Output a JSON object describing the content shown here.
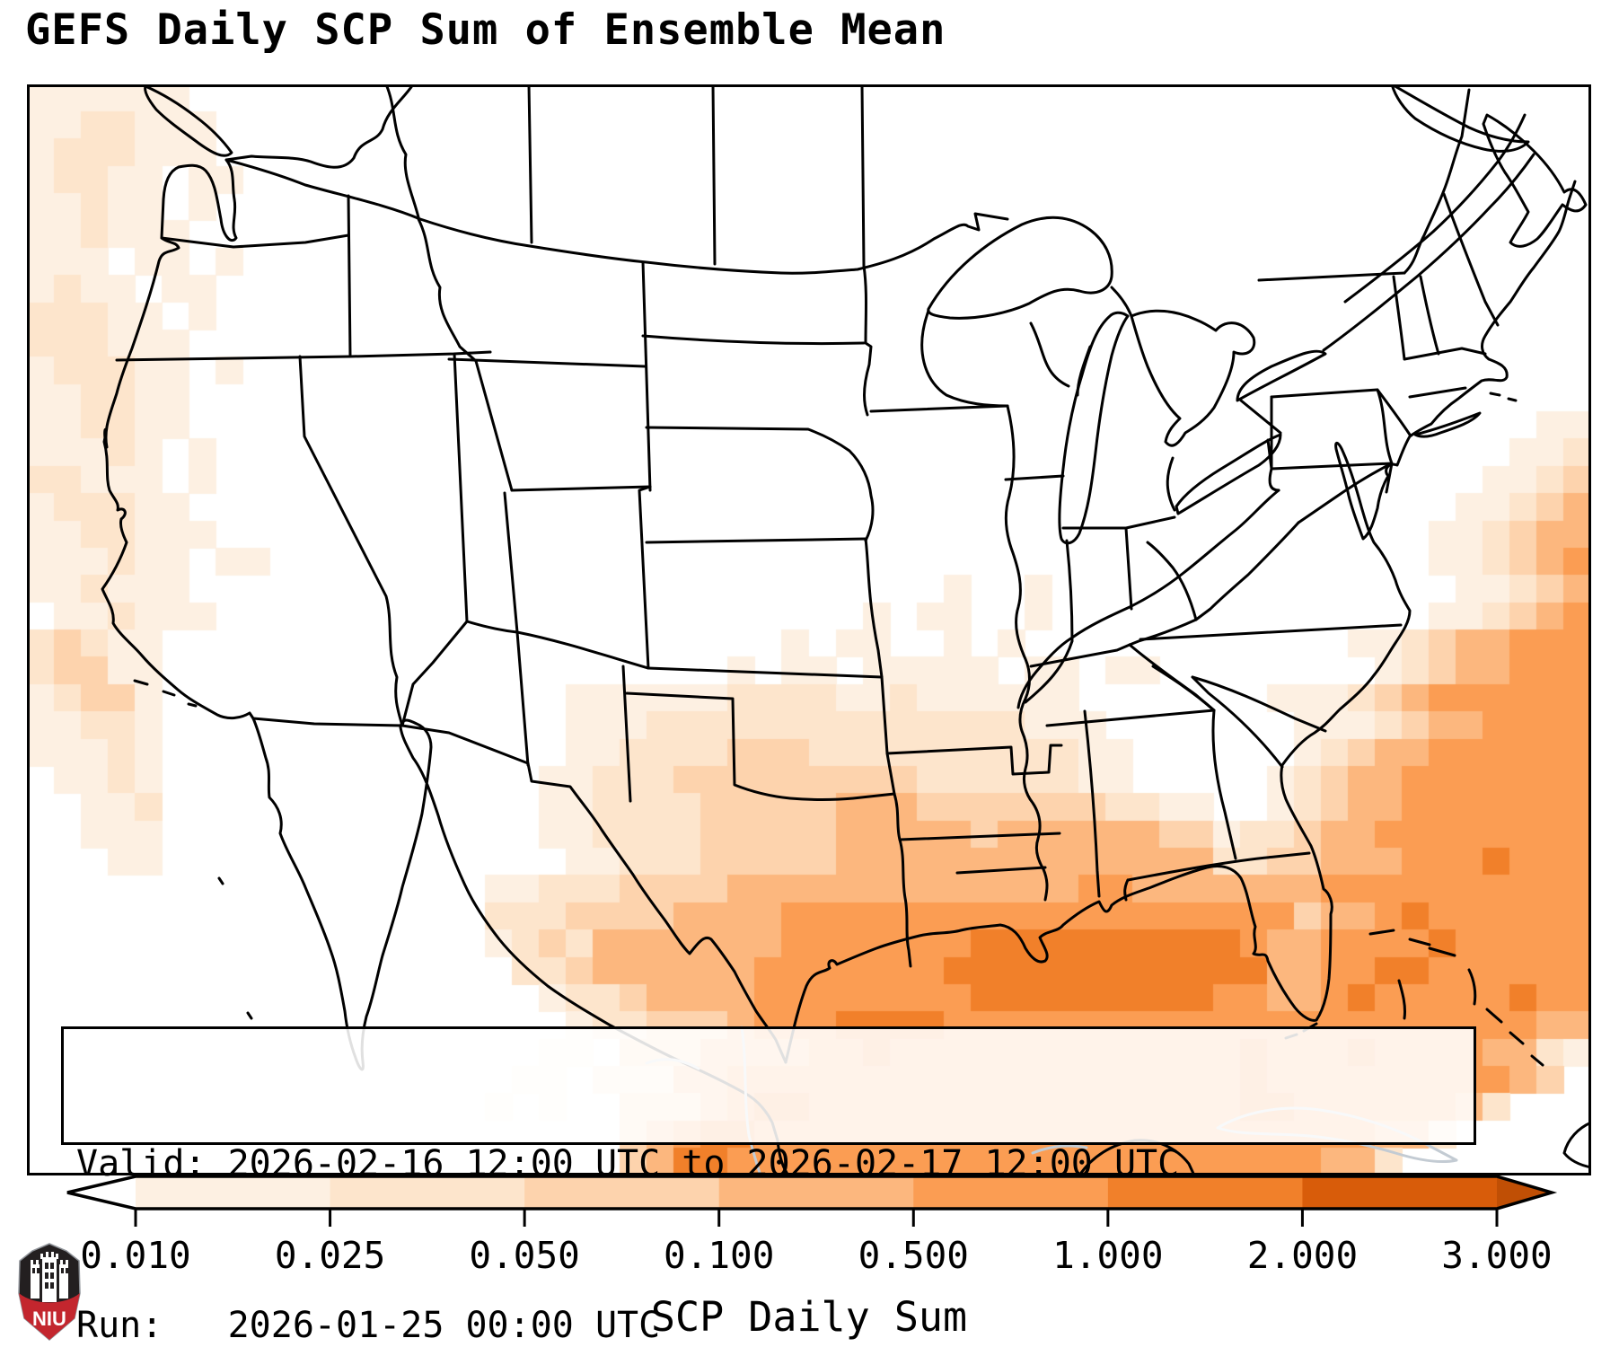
{
  "title": "GEFS Daily SCP Sum of Ensemble Mean",
  "annotation": {
    "valid_line": "Valid: 2026-02-16 12:00 UTC to 2026-02-17 12:00 UTC",
    "run_line": "Run:   2026-01-25 00:00 UTC"
  },
  "colorbar": {
    "label": "SCP Daily Sum",
    "tick_labels": [
      "0.010",
      "0.025",
      "0.050",
      "0.100",
      "0.500",
      "1.000",
      "2.000",
      "3.000"
    ],
    "tick_values": [
      0.01,
      0.025,
      0.05,
      0.1,
      0.5,
      1.0,
      2.0,
      3.0
    ],
    "segment_colors": [
      "#fdf0e2",
      "#fde5cc",
      "#fdd3ad",
      "#fcb77e",
      "#fb9d53",
      "#f1802a",
      "#d85c0a"
    ],
    "under_color": "#ffffff",
    "over_color": "#c04f05",
    "border_color": "#000000"
  },
  "map": {
    "frame_color": "#000000",
    "us_outline_color": "#000000",
    "foreign_water_outline_color": "#c3cbd3",
    "palette": [
      "#ffffff",
      "#fdf0e2",
      "#fde5cc",
      "#fdd3ad",
      "#fcb77e",
      "#fb9d53",
      "#f1802a",
      "#d85c0a",
      "#c04f05"
    ],
    "grid": {
      "cols": 58,
      "rows": 40,
      "cells": [
        "1111110000000000000000000000000000000000000000000000000000",
        "1122111000000000000000000000000000000000000000000000000000",
        "1222111000000000000000000000000000000000000000000000000000",
        "1221101100000000000000000000000000000000000000000000000000",
        "1121101000000000000000000000000000000000000000000000000000",
        "1121110000000000000000000000000000000000000000000000000000",
        "1110110100000000000000000000000000000000000000000000000000",
        "1211011000000000000000000000000000000000000000000000000000",
        "2221101000000000000000000000000000000000000000000000000000",
        "2221110000000000000000000000000000000000000000000000000000",
        "1222110100000000000000000000000000000000000000000000000000",
        "1122110000000000000000000000000000000000000000000000000000",
        "1122110000000000000000000000000000000000000000000000000011",
        "1112101000000000000000000000000000000000000000000000000112",
        "2211101000000000000000000000000000000000000000000000001123",
        "1222110000000000000000000000000000000000000000000000011234",
        "1122111000000000000000000000000000000000000000000000112344",
        "1112110110000000000000000000000000000000000000000000112345",
        "1121110000000000000000000000000000100100000000000000011234",
        "0112111000000000000000000000000101100100000000000000112345",
        "2321100000000000000000000000101100101000000000000112344555",
        "2331100000000000000000000010110111110110110000000012344555",
        "1233100000000000000011111122221121111110000000111234555555",
        "1122100000000000000011122222222222222111000000011123445555",
        "1112100000000000000011222233322222222221100000012344555555",
        "0112100000000000000112223333333332222221100000123445555555",
        "0011200000000000000112222333334443333333221100123445555555",
        "0011100000000000000112222333334444434444443312234455555555",
        "0001100000000000000011222333334444444444444422334445556555",
        "0000000000000000011222333344444444444445544444445555555555",
        "0000000000000000022233334444555555555555555555534456555555",
        "0000000000000000012324444444555555566666666665445555655555",
        "0000000000000000002234444445555555666666666666445566555555",
        "0000000000000000000122344445555555566666666655445655555655",
        "0000000000000000000012233345556666555555555555555555555544",
        "0000000000000000000110333444455655555555555556555655554421",
        "0000000000000000001102224455555555555555555556555555555430",
        "0000000000000000010100333456655555555555555556655555542000",
        "0000000000000000000000345665555555555555555555555544200000",
        "0000000000000000000000346655555555555555555555554420000000"
      ]
    }
  },
  "logo": {
    "label": "NIU",
    "shield_color": "#231f20",
    "band_color": "#c3262e",
    "castle_color": "#ffffff"
  },
  "chart_data": {
    "type": "heatmap",
    "title": "GEFS Daily SCP Sum of Ensemble Mean",
    "colorbar_label": "SCP Daily Sum",
    "levels": [
      0.01,
      0.025,
      0.05,
      0.1,
      0.5,
      1.0,
      2.0,
      3.0
    ],
    "legend_position": "bottom",
    "valid_period": "2026-02-16 12:00 UTC to 2026-02-17 12:00 UTC",
    "model_run": "2026-01-25 00:00 UTC",
    "notes": "Gridded supercell-composite daily sum over CONUS domain; maxima 1-2 over central Gulf of Mexico and western Atlantic, 0.1-1.0 along Gulf Coast states, light band 0.01-0.05 off the Pacific coast, near zero over the interior U.S."
  }
}
